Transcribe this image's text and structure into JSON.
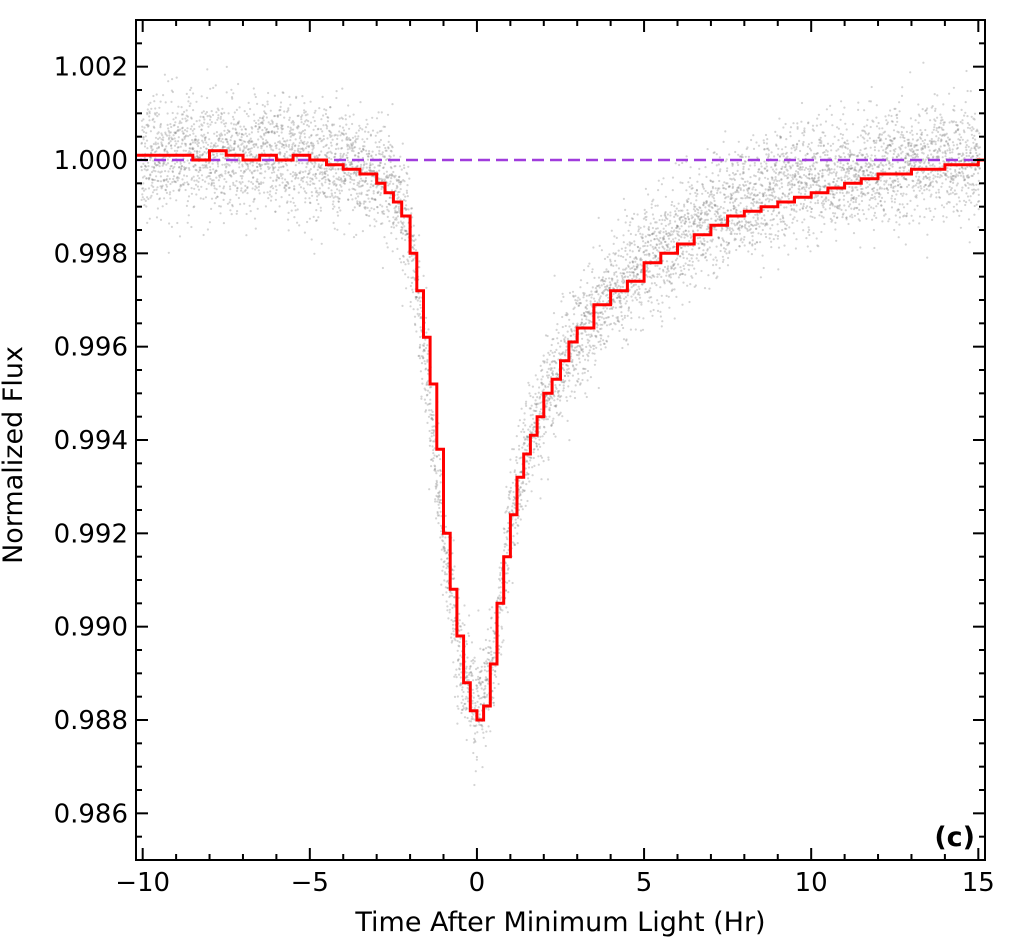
{
  "chart_data": {
    "type": "scatter",
    "xlabel": "Time After Minimum Light (Hr)",
    "ylabel": "Normalized Flux",
    "panel_label": "(c)",
    "xlim": [
      -10.2,
      15.2
    ],
    "ylim": [
      0.985,
      1.003
    ],
    "x_ticks": [
      -10,
      -5,
      0,
      5,
      10,
      15
    ],
    "x_tick_labels": [
      "−10",
      "−5",
      "0",
      "5",
      "10",
      "15"
    ],
    "y_ticks": [
      0.986,
      0.988,
      0.99,
      0.992,
      0.994,
      0.996,
      0.998,
      1.0,
      1.002
    ],
    "y_tick_labels": [
      "0.986",
      "0.988",
      "0.990",
      "0.992",
      "0.994",
      "0.996",
      "0.998",
      "1.000",
      "1.002"
    ],
    "grid": false,
    "colors": {
      "points": "#7a7a7a",
      "binned_model": "#ff0000",
      "baseline": "#a03cdc"
    },
    "series": [
      {
        "style": "scatter",
        "description_of_values": "raw photometric points, individual scatter",
        "x": [
          -10.0,
          -9.0,
          -8.0,
          -7.0,
          -6.0,
          -5.0,
          -4.0,
          -3.0,
          -2.5,
          -2.0,
          -1.5,
          -1.0,
          -0.5,
          0.0,
          0.5,
          1.0,
          1.5,
          2.0,
          3.0,
          4.0,
          5.0,
          6.0,
          7.0,
          8.0,
          9.0,
          10.0,
          11.0,
          12.0,
          13.0,
          14.0,
          15.0
        ],
        "y": [
          1.0001,
          1.0001,
          1.0001,
          1.0001,
          1.0001,
          1.0,
          0.9999,
          0.9996,
          0.9993,
          0.9985,
          0.9955,
          0.9918,
          0.9893,
          0.9881,
          0.9893,
          0.9922,
          0.9938,
          0.9948,
          0.9962,
          0.9971,
          0.9978,
          0.9983,
          0.9988,
          0.9991,
          0.9994,
          0.9996,
          0.9997,
          0.9998,
          0.9999,
          1.0,
          1.0
        ],
        "scatter_sigma": 0.0006
      },
      {
        "style": "step",
        "x": [
          -10.2,
          -9.5,
          -9.0,
          -8.5,
          -8.0,
          -7.5,
          -7.0,
          -6.5,
          -6.0,
          -5.5,
          -5.0,
          -4.5,
          -4.0,
          -3.5,
          -3.0,
          -2.75,
          -2.5,
          -2.25,
          -2.0,
          -1.8,
          -1.6,
          -1.4,
          -1.2,
          -1.0,
          -0.8,
          -0.6,
          -0.4,
          -0.2,
          0.0,
          0.2,
          0.4,
          0.6,
          0.8,
          1.0,
          1.2,
          1.4,
          1.6,
          1.8,
          2.0,
          2.25,
          2.5,
          2.75,
          3.0,
          3.5,
          4.0,
          4.5,
          5.0,
          5.5,
          6.0,
          6.5,
          7.0,
          7.5,
          8.0,
          8.5,
          9.0,
          9.5,
          10.0,
          10.5,
          11.0,
          11.5,
          12.0,
          12.5,
          13.0,
          13.5,
          14.0,
          14.5,
          15.0,
          15.2
        ],
        "y": [
          1.0001,
          1.0001,
          1.0001,
          1.0,
          1.0002,
          1.0001,
          1.0,
          1.0001,
          1.0,
          1.0001,
          1.0,
          0.9999,
          0.9998,
          0.9997,
          0.9995,
          0.9993,
          0.9991,
          0.9988,
          0.998,
          0.9972,
          0.9962,
          0.9952,
          0.9938,
          0.992,
          0.9908,
          0.9898,
          0.9888,
          0.9882,
          0.988,
          0.9883,
          0.9892,
          0.9905,
          0.9915,
          0.9924,
          0.9932,
          0.9937,
          0.9941,
          0.9945,
          0.995,
          0.9953,
          0.9957,
          0.9961,
          0.9964,
          0.9969,
          0.9972,
          0.9974,
          0.9978,
          0.998,
          0.9982,
          0.9984,
          0.9986,
          0.9988,
          0.9989,
          0.999,
          0.9991,
          0.9992,
          0.9993,
          0.9994,
          0.9995,
          0.9996,
          0.9997,
          0.9997,
          0.9998,
          0.9998,
          0.9999,
          0.9999,
          1.0,
          1.0
        ]
      },
      {
        "style": "dashed",
        "x": [
          -10.2,
          15.2
        ],
        "y": [
          1.0,
          1.0
        ]
      }
    ]
  }
}
